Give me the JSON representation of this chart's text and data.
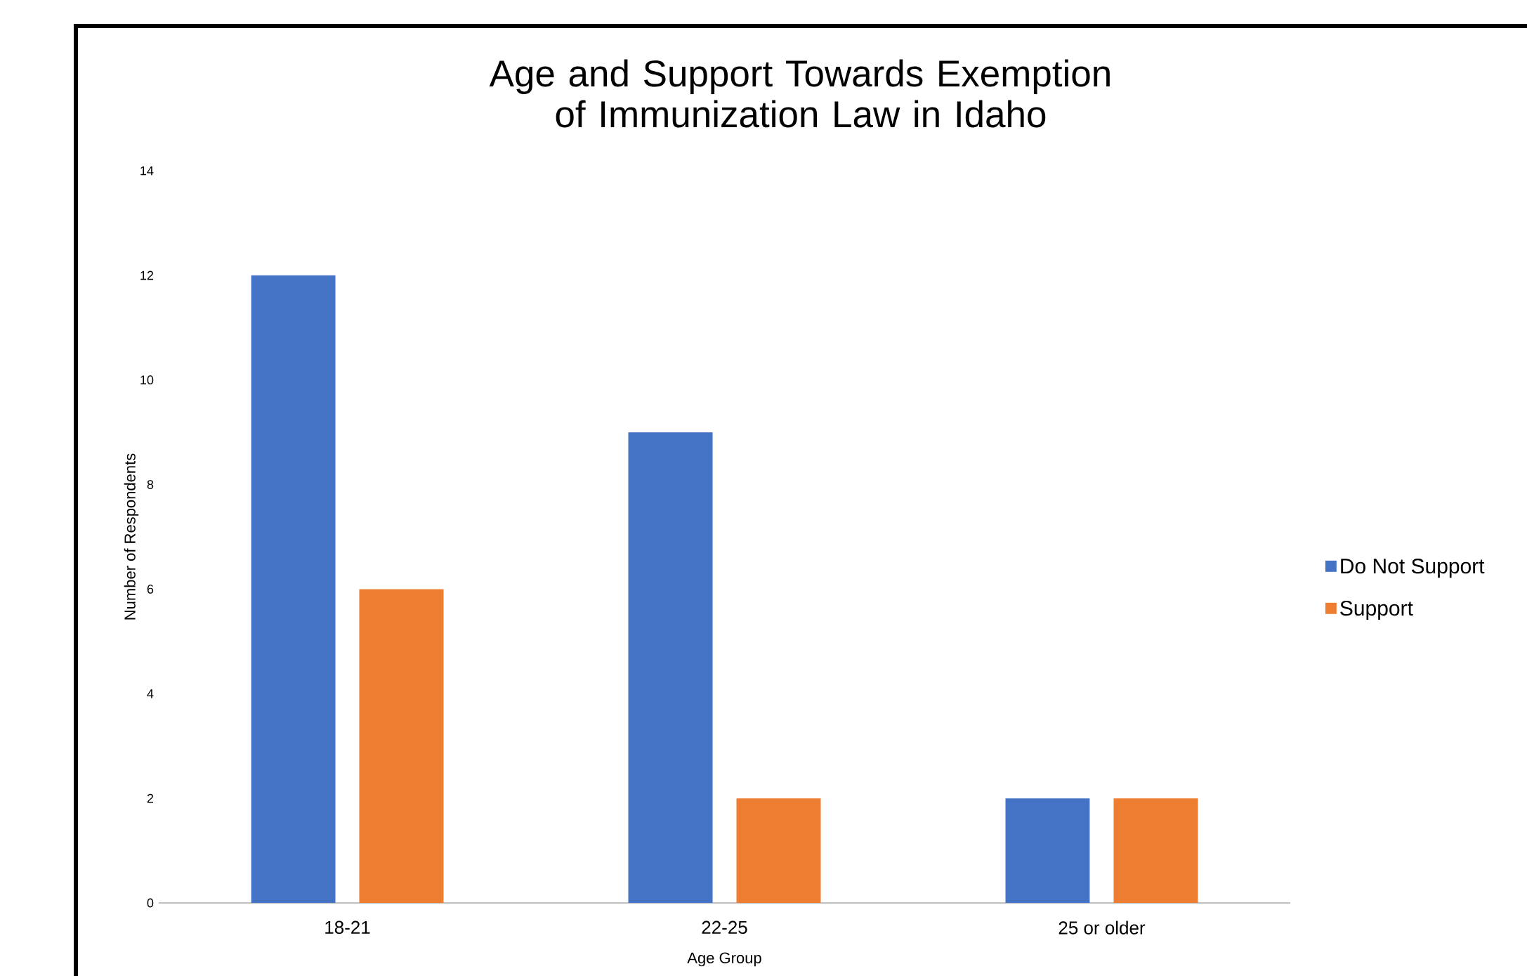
{
  "chart_data": {
    "type": "bar",
    "title": "Age and Support Towards Exemption of Immunization Law in Idaho",
    "xlabel": "Age Group",
    "ylabel": "Number of Respondents",
    "categories": [
      "18-21",
      "22-25",
      "25 or older"
    ],
    "series": [
      {
        "name": "Do Not Support",
        "color": "#4472c4",
        "values": [
          12,
          9,
          2
        ]
      },
      {
        "name": "Support",
        "color": "#ed7d31",
        "values": [
          6,
          2,
          2
        ]
      }
    ],
    "ylim": [
      0,
      14
    ],
    "yticks": [
      0,
      2,
      4,
      6,
      8,
      10,
      12,
      14
    ],
    "legend": "right"
  }
}
